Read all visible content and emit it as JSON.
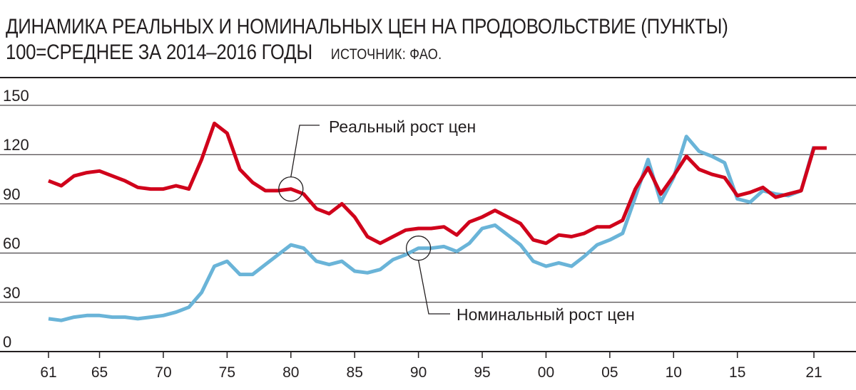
{
  "header": {
    "title_line1": "ДИНАМИКА РЕАЛЬНЫХ И НОМИНАЛЬНЫХ ЦЕН НА ПРОДОВОЛЬСТВИЕ (ПУНКТЫ)",
    "title_line2": "100=СРЕДНЕЕ ЗА 2014–2016 ГОДЫ",
    "source": "ИСТОЧНИК: ФАО."
  },
  "chart_data": {
    "type": "line",
    "title": "ДИНАМИКА РЕАЛЬНЫХ И НОМИНАЛЬНЫХ ЦЕН НА ПРОДОВОЛЬСТВИЕ (ПУНКТЫ)",
    "subtitle": "100=СРЕДНЕЕ ЗА 2014–2016 ГОДЫ",
    "xlabel": "",
    "ylabel": "",
    "ylim": [
      0,
      150
    ],
    "xlim": [
      1961,
      2022
    ],
    "yticks": [
      0,
      30,
      60,
      90,
      120,
      150
    ],
    "ytick_labels": [
      "0",
      "30",
      "60",
      "90",
      "120",
      "150"
    ],
    "xticks": [
      1961,
      1965,
      1970,
      1975,
      1980,
      1985,
      1990,
      1995,
      2000,
      2005,
      2010,
      2015,
      2021
    ],
    "xtick_labels": [
      "61",
      "65",
      "70",
      "75",
      "80",
      "85",
      "90",
      "95",
      "00",
      "05",
      "10",
      "15",
      "21"
    ],
    "grid": "horizontal",
    "series": [
      {
        "name": "Реальный рост цен",
        "color": "#d0021b",
        "x": [
          1961,
          1962,
          1963,
          1964,
          1965,
          1966,
          1967,
          1968,
          1969,
          1970,
          1971,
          1972,
          1973,
          1974,
          1975,
          1976,
          1977,
          1978,
          1979,
          1980,
          1981,
          1982,
          1983,
          1984,
          1985,
          1986,
          1987,
          1988,
          1989,
          1990,
          1991,
          1992,
          1993,
          1994,
          1995,
          1996,
          1997,
          1998,
          1999,
          2000,
          2001,
          2002,
          2003,
          2004,
          2005,
          2006,
          2007,
          2008,
          2009,
          2010,
          2011,
          2012,
          2013,
          2014,
          2015,
          2016,
          2017,
          2018,
          2019,
          2020,
          2021,
          2022
        ],
        "y": [
          104,
          101,
          107,
          109,
          110,
          107,
          104,
          100,
          99,
          99,
          101,
          99,
          117,
          139,
          133,
          111,
          103,
          98,
          98,
          99,
          96,
          87,
          84,
          90,
          82,
          70,
          66,
          70,
          74,
          75,
          75,
          76,
          71,
          79,
          82,
          86,
          82,
          78,
          68,
          66,
          71,
          70,
          72,
          76,
          76,
          80,
          99,
          112,
          96,
          107,
          119,
          111,
          108,
          106,
          95,
          97,
          100,
          94,
          96,
          98,
          124,
          124
        ],
        "y_estimated_note": ""
      },
      {
        "name": "Номинальный рост цен",
        "color": "#6ab4d8",
        "x": [
          1961,
          1962,
          1963,
          1964,
          1965,
          1966,
          1967,
          1968,
          1969,
          1970,
          1971,
          1972,
          1973,
          1974,
          1975,
          1976,
          1977,
          1978,
          1979,
          1980,
          1981,
          1982,
          1983,
          1984,
          1985,
          1986,
          1987,
          1988,
          1989,
          1990,
          1991,
          1992,
          1993,
          1994,
          1995,
          1996,
          1997,
          1998,
          1999,
          2000,
          2001,
          2002,
          2003,
          2004,
          2005,
          2006,
          2007,
          2008,
          2009,
          2010,
          2011,
          2012,
          2013,
          2014,
          2015,
          2016,
          2017,
          2018,
          2019,
          2020,
          2021
        ],
        "y": [
          20,
          19,
          21,
          22,
          22,
          21,
          21,
          20,
          21,
          22,
          24,
          27,
          36,
          52,
          55,
          47,
          47,
          53,
          59,
          65,
          63,
          55,
          53,
          55,
          49,
          48,
          50,
          56,
          59,
          63,
          63,
          64,
          61,
          66,
          75,
          77,
          71,
          65,
          55,
          52,
          54,
          52,
          58,
          65,
          68,
          72,
          94,
          117,
          91,
          106,
          131,
          122,
          119,
          115,
          93,
          91,
          98,
          96,
          95,
          98,
          125
        ]
      }
    ],
    "annotations": [
      {
        "text": "Реальный рост цен",
        "series": 0,
        "at_x": 1980
      },
      {
        "text": "Номинальный рост цен",
        "series": 1,
        "at_x": 1990
      }
    ]
  }
}
